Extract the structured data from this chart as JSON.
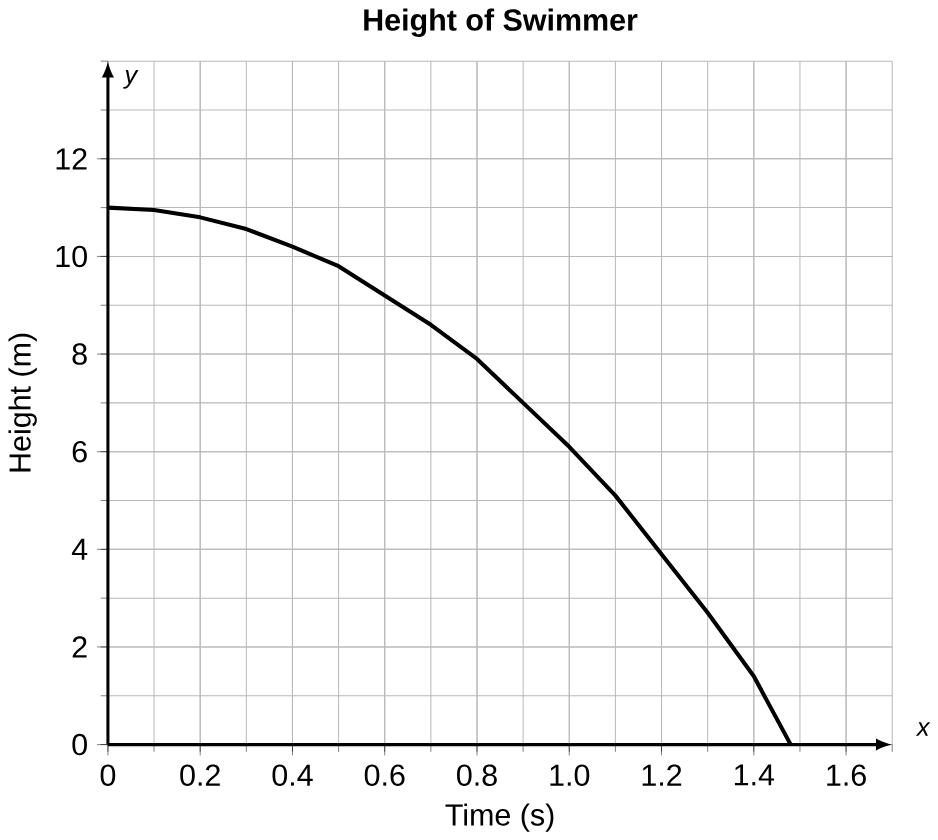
{
  "chart_data": {
    "type": "line",
    "title": "Height of Swimmer",
    "xlabel": "Time (s)",
    "ylabel": "Height (m)",
    "x": [
      0,
      0.1,
      0.2,
      0.3,
      0.4,
      0.5,
      0.6,
      0.7,
      0.8,
      0.9,
      1.0,
      1.1,
      1.2,
      1.3,
      1.4,
      1.48
    ],
    "series": [
      {
        "color": "#000000",
        "values": [
          11,
          10.95,
          10.8,
          10.56,
          10.2,
          9.8,
          9.2,
          8.6,
          7.9,
          7.0,
          6.1,
          5.1,
          3.9,
          2.7,
          1.4,
          0
        ]
      }
    ],
    "xlim": [
      0,
      1.7
    ],
    "ylim": [
      0,
      14
    ],
    "xticks": [
      0,
      0.2,
      0.4,
      0.6,
      0.8,
      {
        "value": 1,
        "label": "1.0"
      },
      1.2,
      1.4,
      1.6
    ],
    "yticks": [
      0,
      2,
      4,
      6,
      8,
      10,
      12
    ],
    "annotations": [
      "x",
      "y"
    ],
    "grid": true,
    "marker": "none",
    "line_style": "solid"
  }
}
